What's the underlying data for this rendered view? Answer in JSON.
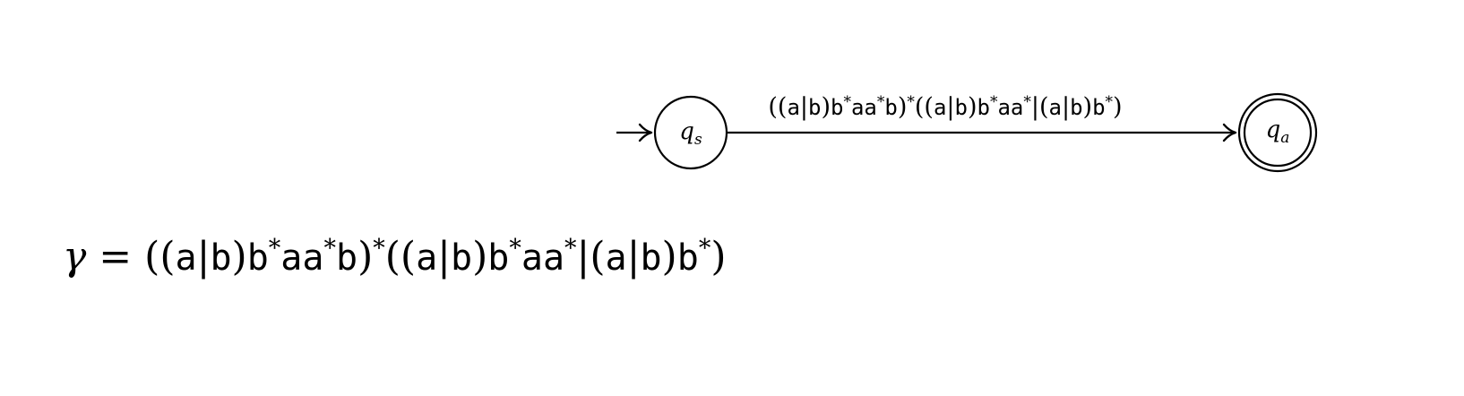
{
  "automaton": {
    "start_state": {
      "main": "q",
      "sub": "s"
    },
    "accept_state": {
      "main": "q",
      "sub": "a"
    },
    "transition_label": [
      {
        "t": "((",
        "f": "serif"
      },
      {
        "t": "a",
        "f": "mono"
      },
      {
        "t": "|",
        "f": "serif"
      },
      {
        "t": "b",
        "f": "mono"
      },
      {
        "t": ")",
        "f": "serif"
      },
      {
        "t": "b",
        "f": "mono"
      },
      {
        "t": "*",
        "f": "sup"
      },
      {
        "t": "aa",
        "f": "mono"
      },
      {
        "t": "*",
        "f": "sup"
      },
      {
        "t": "b",
        "f": "mono"
      },
      {
        "t": ")",
        "f": "serif"
      },
      {
        "t": "*",
        "f": "sup"
      },
      {
        "t": "((",
        "f": "serif"
      },
      {
        "t": "a",
        "f": "mono"
      },
      {
        "t": "|",
        "f": "serif"
      },
      {
        "t": "b",
        "f": "mono"
      },
      {
        "t": ")",
        "f": "serif"
      },
      {
        "t": "b",
        "f": "mono"
      },
      {
        "t": "*",
        "f": "sup"
      },
      {
        "t": "aa",
        "f": "mono"
      },
      {
        "t": "*",
        "f": "sup"
      },
      {
        "t": "|(",
        "f": "serif"
      },
      {
        "t": "a",
        "f": "mono"
      },
      {
        "t": "|",
        "f": "serif"
      },
      {
        "t": "b",
        "f": "mono"
      },
      {
        "t": ")",
        "f": "serif"
      },
      {
        "t": "b",
        "f": "mono"
      },
      {
        "t": "*",
        "f": "sup"
      },
      {
        "t": ")",
        "f": "serif"
      }
    ]
  },
  "equation": {
    "lhs": "γ",
    "equals": "=",
    "expression": [
      {
        "t": "((",
        "f": "serif"
      },
      {
        "t": "a",
        "f": "mono"
      },
      {
        "t": "|",
        "f": "serif"
      },
      {
        "t": "b",
        "f": "mono"
      },
      {
        "t": ")",
        "f": "serif"
      },
      {
        "t": "b",
        "f": "mono"
      },
      {
        "t": "*",
        "f": "sup"
      },
      {
        "t": "aa",
        "f": "mono"
      },
      {
        "t": "*",
        "f": "sup"
      },
      {
        "t": "b",
        "f": "mono"
      },
      {
        "t": ")",
        "f": "serif"
      },
      {
        "t": "*",
        "f": "sup"
      },
      {
        "t": "((",
        "f": "serif"
      },
      {
        "t": "a",
        "f": "mono"
      },
      {
        "t": "|",
        "f": "serif"
      },
      {
        "t": "b",
        "f": "mono"
      },
      {
        "t": ")",
        "f": "serif"
      },
      {
        "t": "b",
        "f": "mono"
      },
      {
        "t": "*",
        "f": "sup"
      },
      {
        "t": "aa",
        "f": "mono"
      },
      {
        "t": "*",
        "f": "sup"
      },
      {
        "t": "|(",
        "f": "serif"
      },
      {
        "t": "a",
        "f": "mono"
      },
      {
        "t": "|",
        "f": "serif"
      },
      {
        "t": "b",
        "f": "mono"
      },
      {
        "t": ")",
        "f": "serif"
      },
      {
        "t": "b",
        "f": "mono"
      },
      {
        "t": "*",
        "f": "sup"
      },
      {
        "t": ")",
        "f": "serif"
      }
    ]
  }
}
